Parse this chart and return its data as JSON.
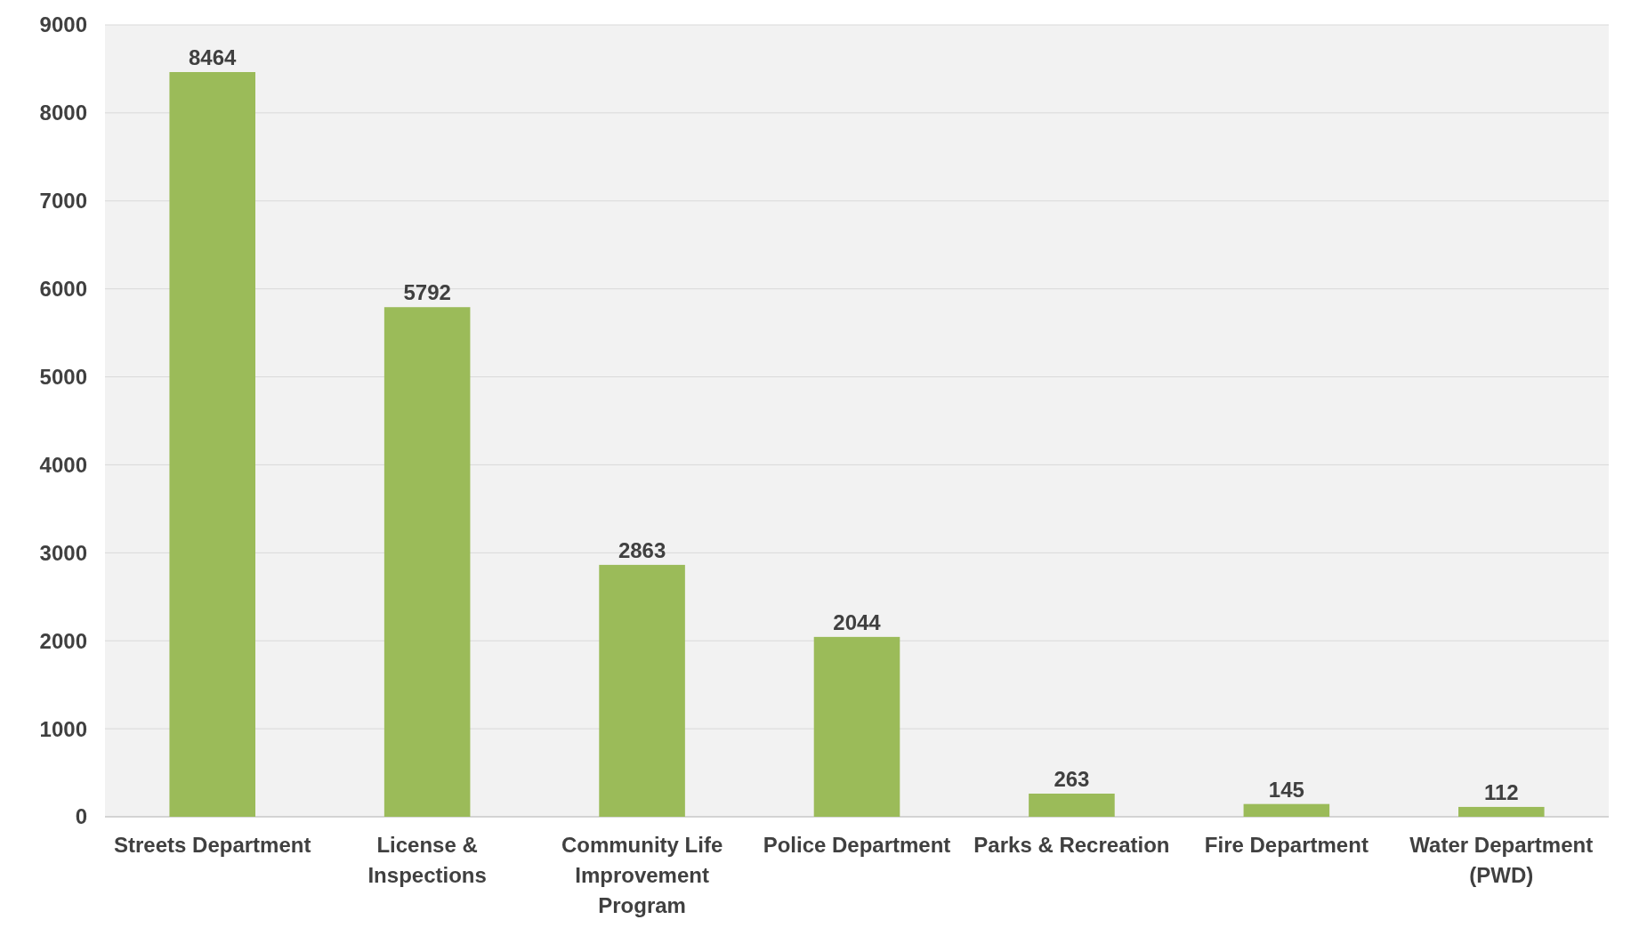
{
  "chart_data": {
    "type": "bar",
    "categories": [
      "Streets Department",
      "License & Inspections",
      "Community Life Improvement Program",
      "Police Department",
      "Parks & Recreation",
      "Fire Department",
      "Water Department (PWD)"
    ],
    "values": [
      8464,
      5792,
      2863,
      2044,
      263,
      145,
      112
    ],
    "color": "#9bbb59",
    "ylim": [
      0,
      9000
    ],
    "yticks": [
      0,
      1000,
      2000,
      3000,
      4000,
      5000,
      6000,
      7000,
      8000,
      9000
    ],
    "grid": "y",
    "data_labels": true
  }
}
